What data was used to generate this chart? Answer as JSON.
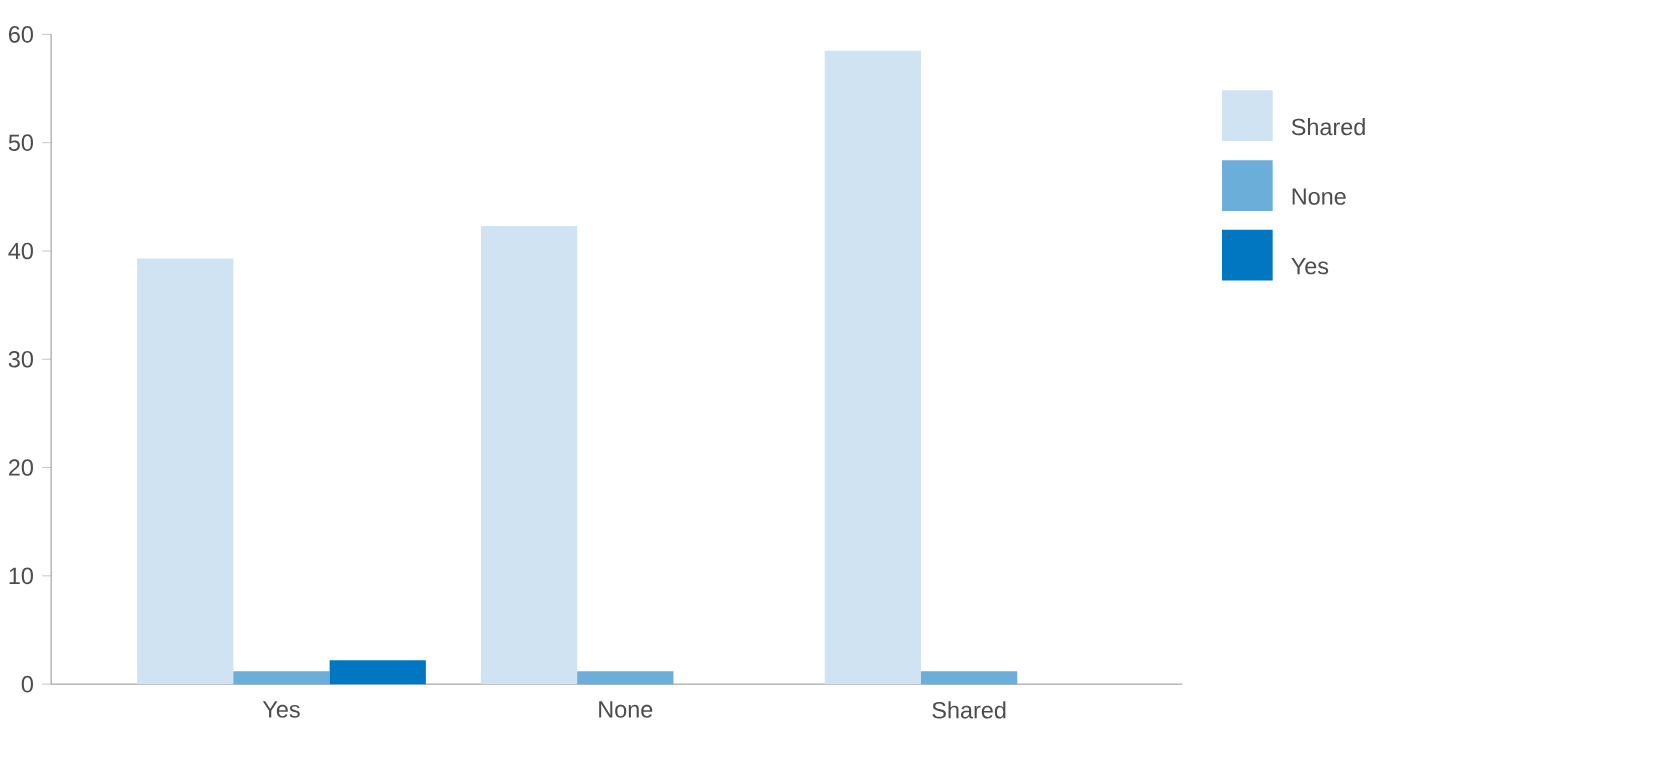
{
  "chart_data": {
    "type": "bar",
    "categories": [
      "Yes",
      "None",
      "Shared"
    ],
    "series": [
      {
        "name": "Shared",
        "color": "#cfe3f3",
        "values": [
          39.3,
          42.3,
          58.5
        ]
      },
      {
        "name": "None",
        "color": "#6aaed9",
        "values": [
          1.2,
          1.2,
          1.2
        ]
      },
      {
        "name": "Yes",
        "color": "#0077c0",
        "values": [
          2.2,
          null,
          null
        ]
      }
    ],
    "ylim": [
      0,
      60
    ],
    "yticks": [
      0,
      10,
      20,
      30,
      40,
      50,
      60
    ],
    "legend": "top right",
    "grid": false
  }
}
